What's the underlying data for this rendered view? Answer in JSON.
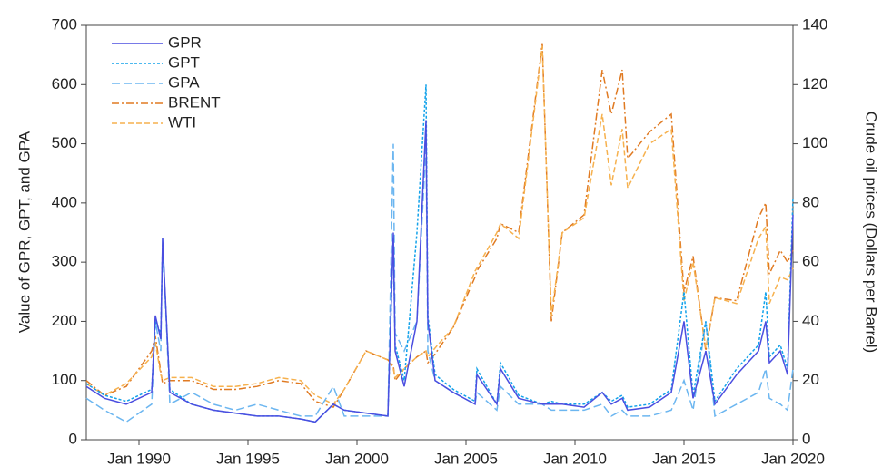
{
  "chart_data": {
    "type": "line",
    "ylabel": "Value of GPR, GPT, and GPA",
    "y2label": "Crude oil prices (Dollars per Barrel)",
    "x": [
      "1987-08",
      "1988-06",
      "1989-06",
      "1990-08",
      "1990-10",
      "1991-01",
      "1991-02",
      "1991-06",
      "1992-06",
      "1993-06",
      "1994-06",
      "1995-06",
      "1996-06",
      "1997-06",
      "1998-02",
      "1998-12",
      "1999-06",
      "2000-06",
      "2001-06",
      "2001-09",
      "2001-10",
      "2002-03",
      "2002-10",
      "2003-03",
      "2003-04",
      "2003-08",
      "2004-06",
      "2005-06",
      "2005-07",
      "2006-06",
      "2006-08",
      "2007-06",
      "2008-07",
      "2008-12",
      "2009-06",
      "2010-06",
      "2011-04",
      "2011-09",
      "2012-03",
      "2012-06",
      "2013-06",
      "2014-06",
      "2015-01",
      "2015-06",
      "2016-01",
      "2016-06",
      "2017-06",
      "2018-06",
      "2018-10",
      "2018-12",
      "2019-06",
      "2019-10",
      "2020-01"
    ],
    "xlim": [
      "1987-08",
      "2020-01"
    ],
    "xticks": [
      {
        "value": "1990-01",
        "label": "Jan 1990"
      },
      {
        "value": "1995-01",
        "label": "Jan 1995"
      },
      {
        "value": "2000-01",
        "label": "Jan 2000"
      },
      {
        "value": "2005-01",
        "label": "Jan 2005"
      },
      {
        "value": "2010-01",
        "label": "Jan 2010"
      },
      {
        "value": "2015-01",
        "label": "Jan 2015"
      },
      {
        "value": "2020-01",
        "label": "Jan 2020"
      }
    ],
    "ylim": [
      0,
      700
    ],
    "yticks": [
      0,
      100,
      200,
      300,
      400,
      500,
      600,
      700
    ],
    "y2lim": [
      0,
      140
    ],
    "y2ticks": [
      0,
      20,
      40,
      60,
      80,
      100,
      120,
      140
    ],
    "legend": "upper left",
    "series": [
      {
        "name": "GPR",
        "color": "#4b4ee0",
        "dash": "none",
        "values": [
          90,
          70,
          60,
          80,
          210,
          170,
          340,
          80,
          60,
          50,
          45,
          40,
          40,
          35,
          30,
          60,
          50,
          45,
          40,
          350,
          150,
          90,
          200,
          540,
          200,
          100,
          80,
          60,
          110,
          60,
          120,
          70,
          60,
          60,
          60,
          55,
          80,
          60,
          70,
          50,
          55,
          80,
          200,
          70,
          150,
          60,
          110,
          150,
          200,
          130,
          150,
          110,
          380
        ]
      },
      {
        "name": "GPT",
        "color": "#12a2ea",
        "dash": "3 2",
        "values": [
          95,
          75,
          65,
          85,
          200,
          180,
          330,
          85,
          60,
          50,
          45,
          40,
          40,
          35,
          30,
          60,
          50,
          45,
          40,
          340,
          160,
          100,
          350,
          600,
          210,
          110,
          85,
          65,
          120,
          60,
          130,
          75,
          60,
          65,
          60,
          60,
          80,
          65,
          75,
          55,
          60,
          85,
          250,
          75,
          200,
          65,
          120,
          160,
          250,
          140,
          160,
          120,
          410
        ]
      },
      {
        "name": "GPA",
        "color": "#6cb6f0",
        "dash": "9 4",
        "values": [
          70,
          50,
          30,
          60,
          200,
          150,
          340,
          60,
          80,
          60,
          50,
          60,
          50,
          40,
          40,
          90,
          40,
          40,
          40,
          500,
          180,
          150,
          200,
          500,
          150,
          100,
          80,
          60,
          80,
          50,
          90,
          60,
          60,
          50,
          50,
          50,
          60,
          40,
          50,
          40,
          40,
          50,
          100,
          50,
          200,
          40,
          60,
          80,
          120,
          70,
          60,
          50,
          120
        ]
      },
      {
        "name": "BRENT",
        "color": "#e07a22",
        "dash": "8 3 2 3",
        "axis": "y2",
        "values": [
          20,
          15,
          18,
          30,
          35,
          23,
          19,
          20,
          20,
          17,
          17,
          18,
          20,
          19,
          13,
          11,
          17,
          30,
          27,
          25,
          20,
          24,
          28,
          30,
          26,
          29,
          38,
          55,
          57,
          68,
          73,
          70,
          134,
          40,
          70,
          76,
          125,
          110,
          125,
          95,
          104,
          110,
          50,
          62,
          30,
          48,
          47,
          75,
          80,
          56,
          64,
          60,
          64
        ]
      },
      {
        "name": "WTI",
        "color": "#f6b14e",
        "dash": "6 3",
        "axis": "y2",
        "values": [
          19,
          15,
          19,
          28,
          33,
          22,
          20,
          21,
          21,
          18,
          18,
          19,
          21,
          20,
          15,
          12,
          17,
          30,
          27,
          24,
          21,
          24,
          28,
          30,
          28,
          31,
          38,
          57,
          58,
          70,
          73,
          68,
          133,
          42,
          70,
          75,
          110,
          86,
          105,
          85,
          100,
          105,
          47,
          60,
          31,
          48,
          46,
          68,
          72,
          46,
          55,
          54,
          58
        ]
      }
    ]
  }
}
